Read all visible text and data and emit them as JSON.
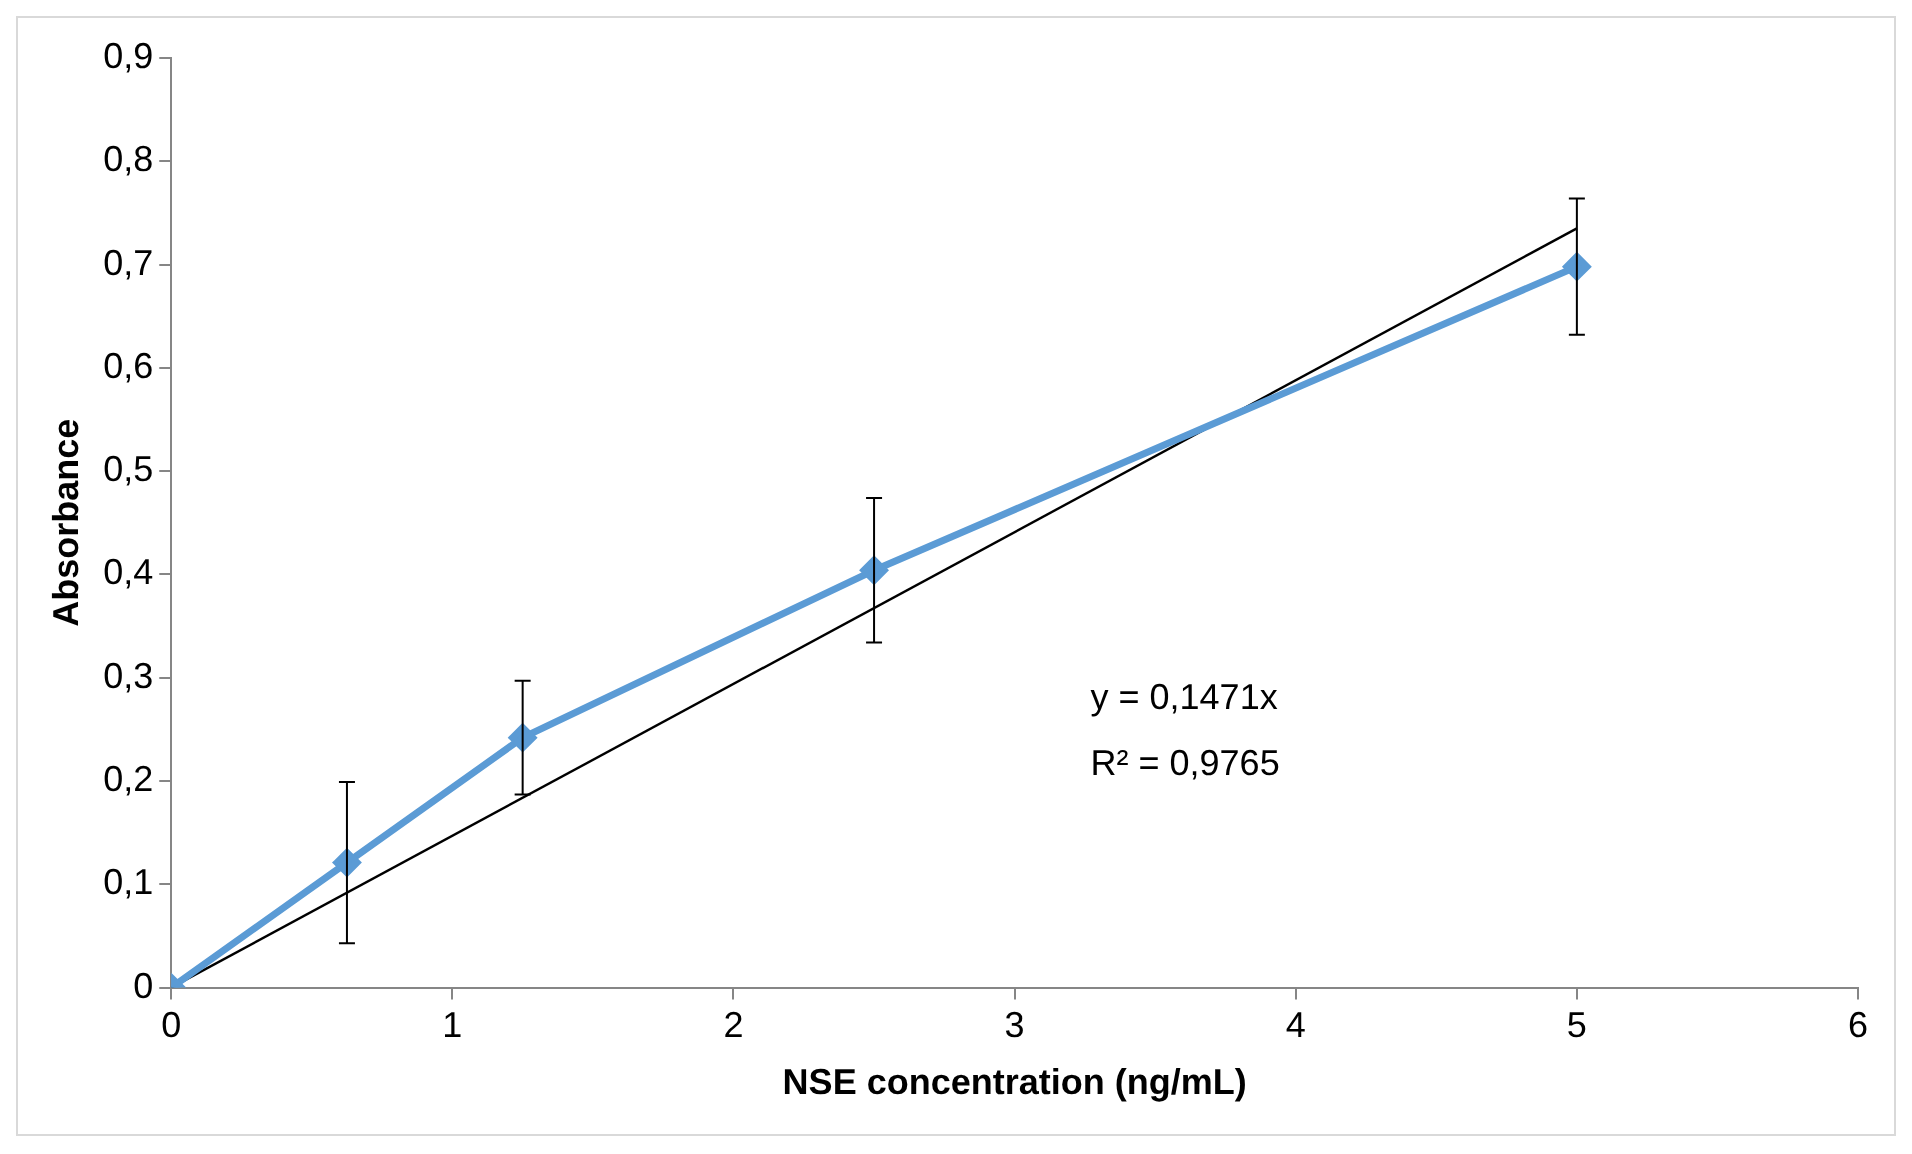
{
  "chart_data": {
    "type": "line",
    "xlabel": "NSE concentration (ng/mL)",
    "ylabel": "Absorbance",
    "xlim": [
      0,
      6
    ],
    "xticks": [
      0,
      1,
      2,
      3,
      4,
      5,
      6
    ],
    "ylim": [
      0,
      0.9
    ],
    "yticks": [
      0,
      {
        "value": 0.1,
        "label": "0,1"
      },
      {
        "value": 0.2,
        "label": "0,2"
      },
      {
        "value": 0.3,
        "label": "0,3"
      },
      {
        "value": 0.4,
        "label": "0,4"
      },
      {
        "value": 0.5,
        "label": "0,5"
      },
      {
        "value": 0.6,
        "label": "0,6"
      },
      {
        "value": 0.7,
        "label": "0,7"
      },
      {
        "value": 0.8,
        "label": "0,8"
      },
      {
        "value": 0.9,
        "label": "0,9"
      }
    ],
    "marker": "diamond",
    "line_style": "solid",
    "series": [
      {
        "type": "line",
        "color": "#5b9bd5",
        "x": [
          0,
          0.625,
          1.25,
          2.5,
          5
        ],
        "values": [
          0,
          0.121,
          0.242,
          0.404,
          0.698
        ],
        "errors": [
          null,
          0.078,
          0.055,
          0.07,
          0.066
        ]
      },
      {
        "type": "line",
        "color": "#000000",
        "marker": "none",
        "x": [
          0,
          5
        ],
        "values": [
          0,
          0.735
        ]
      }
    ],
    "annotations": [
      "y = 0,1471x",
      "R² = 0,9765"
    ]
  }
}
